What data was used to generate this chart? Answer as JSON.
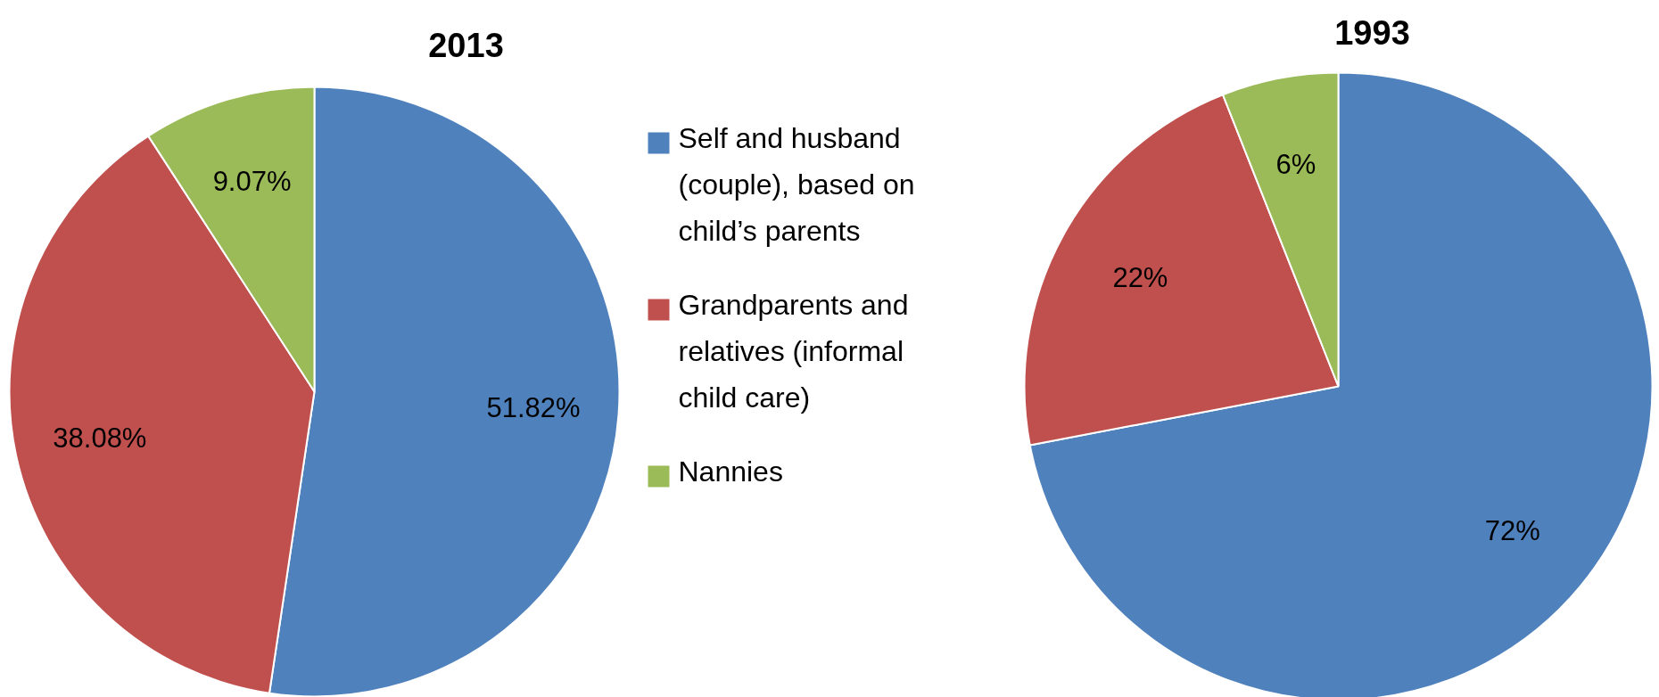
{
  "chart_data": [
    {
      "type": "pie",
      "title": "2013",
      "categories": [
        "Self and husband (couple), based on child’s parents",
        " Grandparents and relatives (informal child care)",
        "Nannies"
      ],
      "values": [
        51.82,
        38.08,
        9.07
      ],
      "value_labels": [
        "51.82%",
        "38.08%",
        "9.07%"
      ],
      "colors": [
        "#4f81bd",
        "#c0504d",
        "#9bbb59"
      ],
      "legend": "right"
    },
    {
      "type": "pie",
      "title": "1993",
      "categories": [
        null,
        null,
        null
      ],
      "values": [
        72,
        22,
        6
      ],
      "value_labels": [
        "72%",
        "22%",
        "6%"
      ],
      "colors": [
        "#4f81bd",
        "#c0504d",
        "#9bbb59"
      ]
    }
  ]
}
